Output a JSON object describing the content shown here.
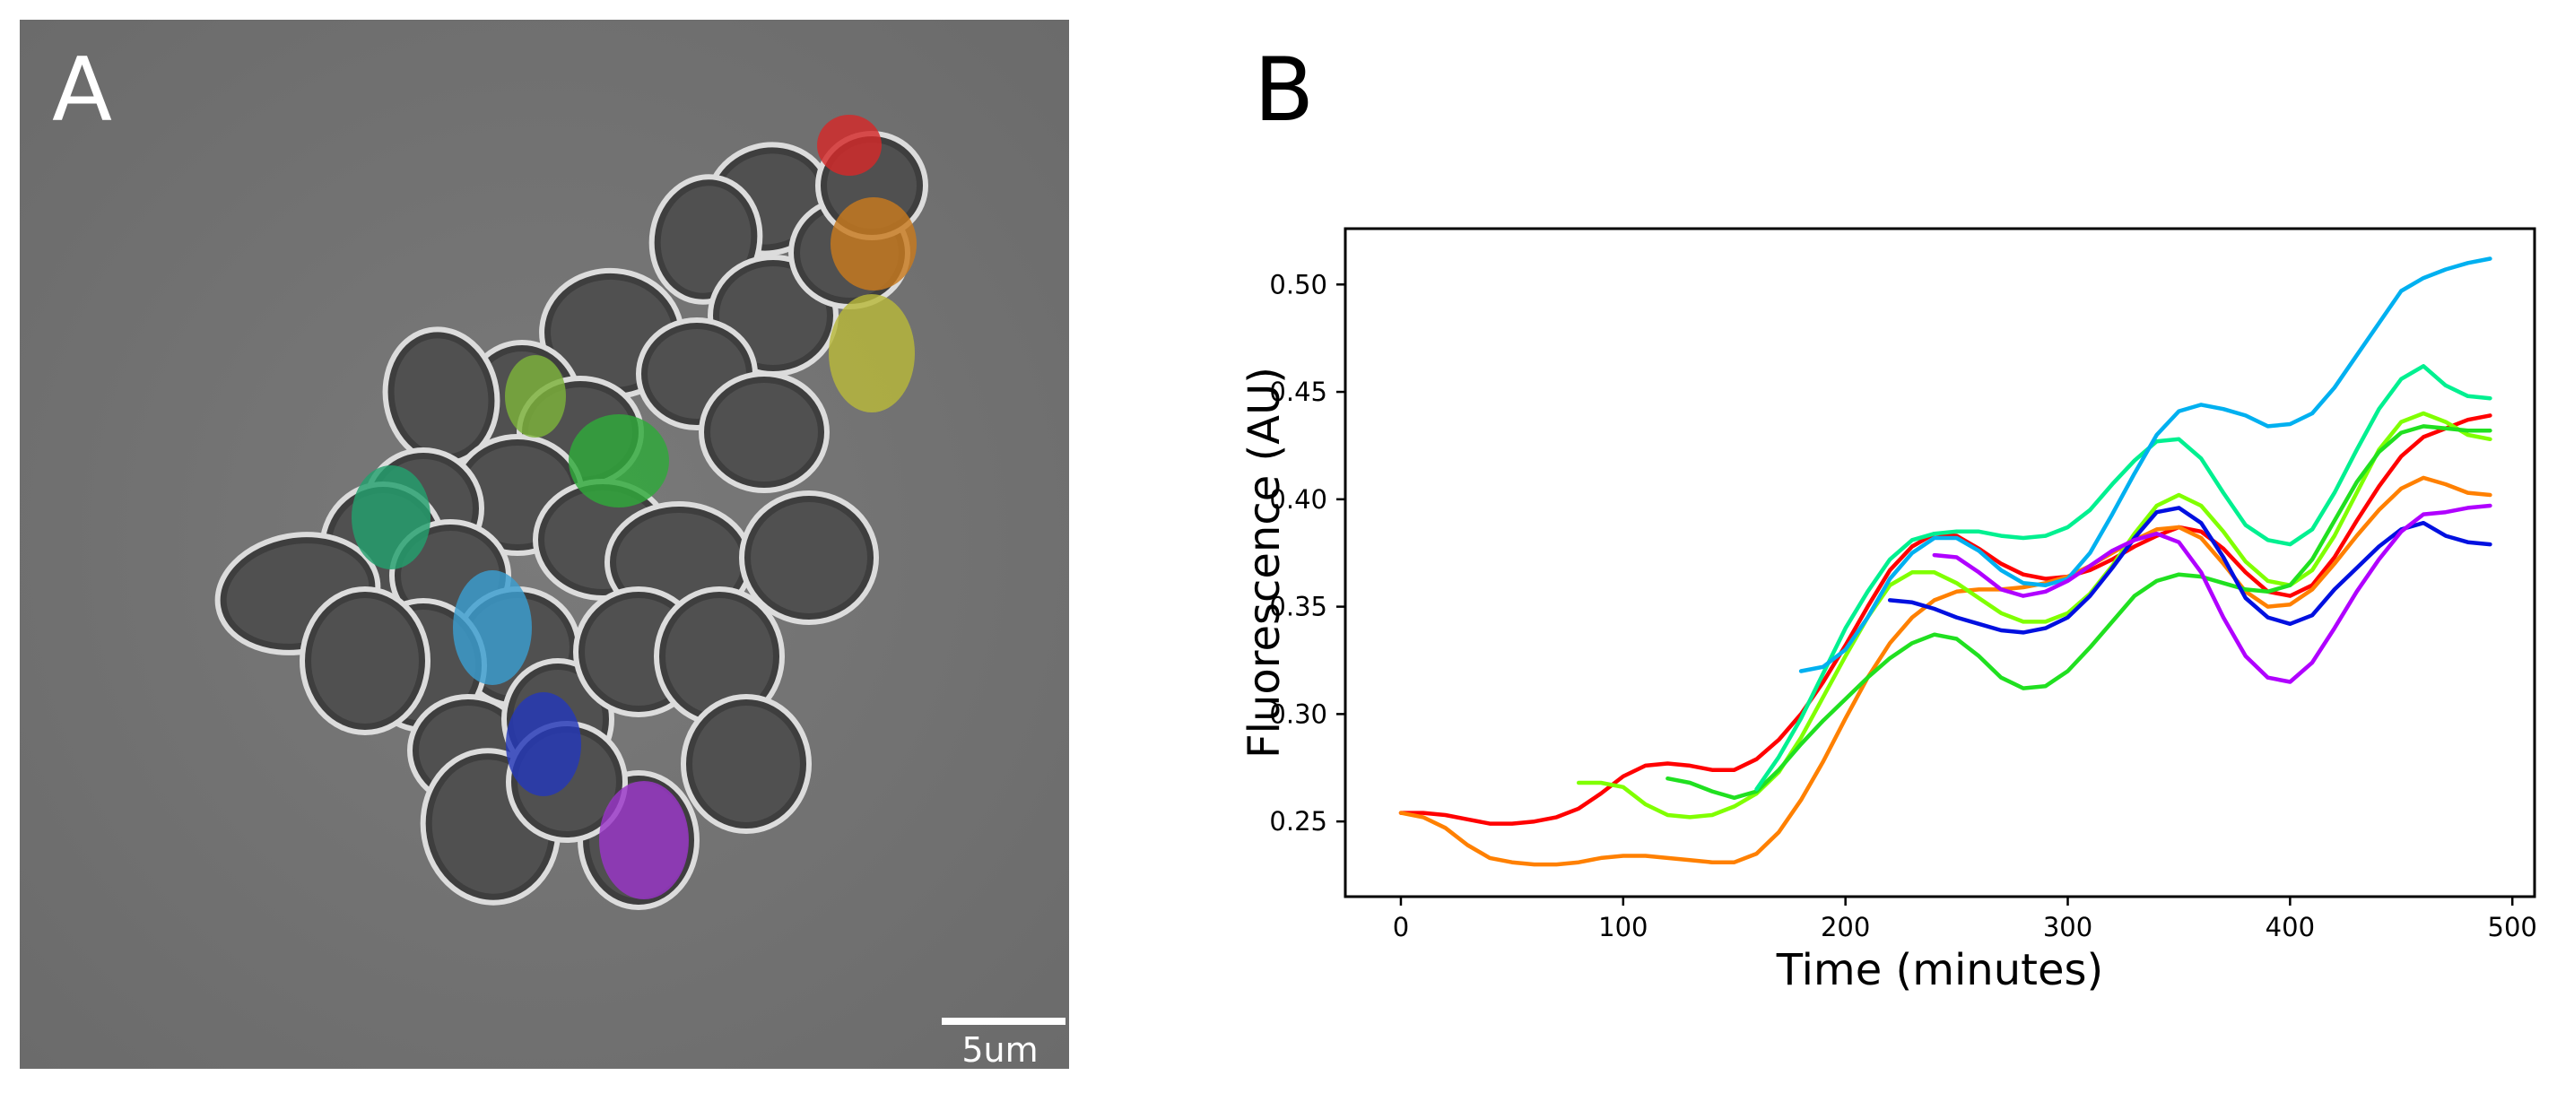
{
  "panel_a": {
    "letter": "A",
    "scale_bar_label": "5um",
    "image_description_color": "#747474",
    "segment_colors": [
      "#d42a2a",
      "#c87a1f",
      "#b8b83a",
      "#7cb23a",
      "#2faa3a",
      "#23a06e",
      "#3a9ed0",
      "#2438b8",
      "#9a36c8"
    ]
  },
  "panel_b": {
    "letter": "B"
  },
  "chart_data": {
    "type": "line",
    "title": "",
    "xlabel": "Time (minutes)",
    "ylabel": "Fluorescence (AU)",
    "xlim": [
      -25,
      510
    ],
    "ylim": [
      0.215,
      0.526
    ],
    "xticks": [
      0,
      100,
      200,
      300,
      400,
      500
    ],
    "yticks": [
      0.25,
      0.3,
      0.35,
      0.4,
      0.45,
      0.5
    ],
    "xtick_labels": [
      "0",
      "100",
      "200",
      "300",
      "400",
      "500"
    ],
    "ytick_labels": [
      "0.25",
      "0.30",
      "0.35",
      "0.40",
      "0.45",
      "0.50"
    ],
    "grid": false,
    "series": [
      {
        "name": "red",
        "color": "#ff0000",
        "x": [
          0,
          10,
          20,
          30,
          40,
          50,
          60,
          70,
          80,
          90,
          100,
          110,
          120,
          130,
          140,
          150,
          160,
          170,
          180,
          190,
          200,
          210,
          220,
          230,
          240,
          250,
          260,
          270,
          280,
          290,
          300,
          310,
          320,
          330,
          340,
          350,
          360,
          370,
          380,
          390,
          400,
          410,
          420,
          430,
          440,
          450,
          460,
          470,
          480,
          490
        ],
        "y": [
          0.254,
          0.254,
          0.253,
          0.251,
          0.249,
          0.249,
          0.25,
          0.252,
          0.256,
          0.263,
          0.271,
          0.276,
          0.277,
          0.276,
          0.274,
          0.274,
          0.279,
          0.288,
          0.3,
          0.315,
          0.332,
          0.35,
          0.367,
          0.378,
          0.384,
          0.383,
          0.377,
          0.37,
          0.365,
          0.363,
          0.364,
          0.367,
          0.372,
          0.378,
          0.383,
          0.387,
          0.385,
          0.377,
          0.366,
          0.357,
          0.355,
          0.36,
          0.373,
          0.39,
          0.406,
          0.42,
          0.429,
          0.433,
          0.437,
          0.439
        ]
      },
      {
        "name": "orange",
        "color": "#ff8000",
        "x": [
          0,
          10,
          20,
          30,
          40,
          50,
          60,
          70,
          80,
          90,
          100,
          110,
          120,
          130,
          140,
          150,
          160,
          170,
          180,
          190,
          200,
          210,
          220,
          230,
          240,
          250,
          260,
          270,
          280,
          290,
          300,
          310,
          320,
          330,
          340,
          350,
          360,
          370,
          380,
          390,
          400,
          410,
          420,
          430,
          440,
          450,
          460,
          470,
          480,
          490
        ],
        "y": [
          0.254,
          0.252,
          0.247,
          0.239,
          0.233,
          0.231,
          0.23,
          0.23,
          0.231,
          0.233,
          0.234,
          0.234,
          0.233,
          0.232,
          0.231,
          0.231,
          0.235,
          0.245,
          0.26,
          0.278,
          0.298,
          0.317,
          0.333,
          0.345,
          0.353,
          0.357,
          0.358,
          0.358,
          0.359,
          0.361,
          0.364,
          0.369,
          0.375,
          0.381,
          0.386,
          0.387,
          0.382,
          0.37,
          0.357,
          0.35,
          0.351,
          0.358,
          0.37,
          0.383,
          0.395,
          0.405,
          0.41,
          0.407,
          0.403,
          0.402
        ]
      },
      {
        "name": "yellow-green",
        "color": "#80ff00",
        "x": [
          80,
          90,
          100,
          110,
          120,
          130,
          140,
          150,
          160,
          170,
          180,
          190,
          200,
          210,
          220,
          230,
          240,
          250,
          260,
          270,
          280,
          290,
          300,
          310,
          320,
          330,
          340,
          350,
          360,
          370,
          380,
          390,
          400,
          410,
          420,
          430,
          440,
          450,
          460,
          470,
          480,
          490
        ],
        "y": [
          0.268,
          0.268,
          0.266,
          0.258,
          0.253,
          0.252,
          0.253,
          0.257,
          0.263,
          0.273,
          0.289,
          0.308,
          0.327,
          0.345,
          0.36,
          0.366,
          0.366,
          0.361,
          0.354,
          0.347,
          0.343,
          0.343,
          0.347,
          0.356,
          0.369,
          0.384,
          0.397,
          0.402,
          0.397,
          0.385,
          0.371,
          0.362,
          0.36,
          0.367,
          0.383,
          0.403,
          0.423,
          0.436,
          0.44,
          0.436,
          0.43,
          0.428
        ]
      },
      {
        "name": "green",
        "color": "#20e020",
        "x": [
          120,
          130,
          140,
          150,
          160,
          170,
          180,
          190,
          200,
          210,
          220,
          230,
          240,
          250,
          260,
          270,
          280,
          290,
          300,
          310,
          320,
          330,
          340,
          350,
          360,
          370,
          380,
          390,
          400,
          410,
          420,
          430,
          440,
          450,
          460,
          470,
          480,
          490
        ],
        "y": [
          0.27,
          0.268,
          0.264,
          0.261,
          0.264,
          0.274,
          0.286,
          0.297,
          0.307,
          0.317,
          0.326,
          0.333,
          0.337,
          0.335,
          0.327,
          0.317,
          0.312,
          0.313,
          0.32,
          0.331,
          0.343,
          0.355,
          0.362,
          0.365,
          0.364,
          0.361,
          0.358,
          0.357,
          0.36,
          0.372,
          0.39,
          0.408,
          0.422,
          0.431,
          0.434,
          0.433,
          0.432,
          0.432
        ]
      },
      {
        "name": "spring-green",
        "color": "#00f090",
        "x": [
          160,
          170,
          180,
          190,
          200,
          210,
          220,
          230,
          240,
          250,
          260,
          270,
          280,
          290,
          300,
          310,
          320,
          330,
          340,
          350,
          360,
          370,
          380,
          390,
          400,
          410,
          420,
          430,
          440,
          450,
          460,
          470,
          480,
          490
        ],
        "y": [
          0.265,
          0.28,
          0.298,
          0.319,
          0.34,
          0.357,
          0.372,
          0.381,
          0.384,
          0.385,
          0.385,
          0.383,
          0.382,
          0.383,
          0.387,
          0.395,
          0.407,
          0.418,
          0.427,
          0.428,
          0.419,
          0.403,
          0.388,
          0.381,
          0.379,
          0.386,
          0.403,
          0.423,
          0.442,
          0.456,
          0.462,
          0.453,
          0.448,
          0.447
        ]
      },
      {
        "name": "sky-blue",
        "color": "#00b0f0",
        "x": [
          180,
          190,
          200,
          210,
          220,
          230,
          240,
          250,
          260,
          270,
          280,
          290,
          300,
          310,
          320,
          330,
          340,
          350,
          360,
          370,
          380,
          390,
          400,
          410,
          420,
          430,
          440,
          450,
          460,
          470,
          480,
          490
        ],
        "y": [
          0.32,
          0.322,
          0.33,
          0.345,
          0.363,
          0.375,
          0.382,
          0.382,
          0.376,
          0.367,
          0.361,
          0.36,
          0.363,
          0.375,
          0.393,
          0.412,
          0.43,
          0.441,
          0.444,
          0.442,
          0.439,
          0.434,
          0.435,
          0.44,
          0.452,
          0.467,
          0.482,
          0.497,
          0.503,
          0.507,
          0.51,
          0.512
        ]
      },
      {
        "name": "blue",
        "color": "#0010e0",
        "x": [
          220,
          230,
          240,
          250,
          260,
          270,
          280,
          290,
          300,
          310,
          320,
          330,
          340,
          350,
          360,
          370,
          380,
          390,
          400,
          410,
          420,
          430,
          440,
          450,
          460,
          470,
          480,
          490
        ],
        "y": [
          0.353,
          0.352,
          0.349,
          0.345,
          0.342,
          0.339,
          0.338,
          0.34,
          0.345,
          0.355,
          0.368,
          0.382,
          0.394,
          0.396,
          0.389,
          0.373,
          0.354,
          0.345,
          0.342,
          0.346,
          0.358,
          0.368,
          0.378,
          0.386,
          0.389,
          0.383,
          0.38,
          0.379
        ]
      },
      {
        "name": "purple",
        "color": "#b000ff",
        "x": [
          240,
          250,
          260,
          270,
          280,
          290,
          300,
          310,
          320,
          330,
          340,
          350,
          360,
          370,
          380,
          390,
          400,
          410,
          420,
          430,
          440,
          450,
          460,
          470,
          480,
          490
        ],
        "y": [
          0.374,
          0.373,
          0.366,
          0.358,
          0.355,
          0.357,
          0.362,
          0.369,
          0.376,
          0.381,
          0.384,
          0.38,
          0.366,
          0.345,
          0.327,
          0.317,
          0.315,
          0.324,
          0.34,
          0.357,
          0.372,
          0.385,
          0.393,
          0.394,
          0.396,
          0.397
        ]
      }
    ]
  }
}
